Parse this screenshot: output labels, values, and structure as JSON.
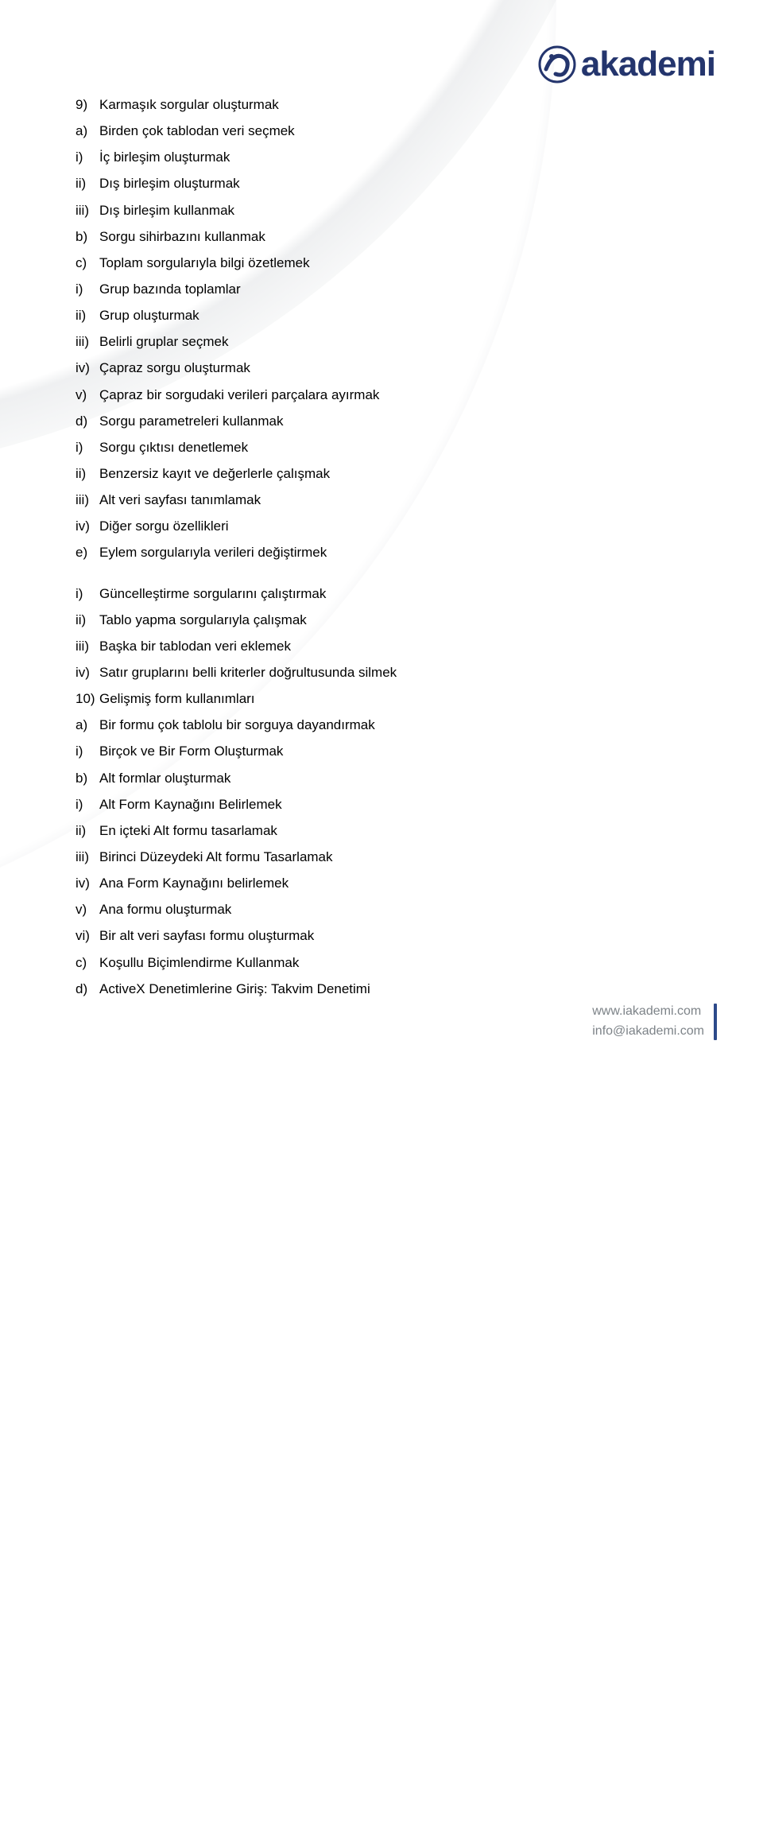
{
  "colors": {
    "text": "#000000",
    "footer_text": "#7d8388",
    "logo_text": "#24356d",
    "logo_swirl": "#24356d",
    "accent_line": "#24356d",
    "footer_bar": "#2d4a8a",
    "background": "#ffffff"
  },
  "logo": {
    "text": "akademi"
  },
  "footer": {
    "line1": "www.iakademi.com",
    "line2": "info@iakademi.com"
  },
  "outline": [
    {
      "lvl": 0,
      "marker": "9)",
      "text": "Karmaşık sorgular oluşturmak"
    },
    {
      "lvl": 1,
      "marker": "a)",
      "text": "Birden çok tablodan veri seçmek"
    },
    {
      "lvl": 2,
      "marker": "i)",
      "text": "İç birleşim oluşturmak"
    },
    {
      "lvl": 2,
      "marker": "ii)",
      "text": "Dış birleşim oluşturmak"
    },
    {
      "lvl": 2,
      "marker": "iii)",
      "text": "Dış birleşim kullanmak"
    },
    {
      "lvl": 1,
      "marker": "b)",
      "text": "Sorgu sihirbazını kullanmak"
    },
    {
      "lvl": 1,
      "marker": "c)",
      "text": "Toplam sorgularıyla bilgi özetlemek"
    },
    {
      "lvl": 2,
      "marker": "i)",
      "text": "Grup bazında toplamlar"
    },
    {
      "lvl": 2,
      "marker": "ii)",
      "text": "Grup oluşturmak"
    },
    {
      "lvl": 2,
      "marker": "iii)",
      "text": "Belirli gruplar seçmek"
    },
    {
      "lvl": 2,
      "marker": "iv)",
      "text": "Çapraz sorgu oluşturmak"
    },
    {
      "lvl": 2,
      "marker": "v)",
      "text": "Çapraz bir sorgudaki verileri parçalara ayırmak"
    },
    {
      "lvl": 1,
      "marker": "d)",
      "text": "Sorgu parametreleri kullanmak"
    },
    {
      "lvl": 2,
      "marker": "i)",
      "text": "Sorgu çıktısı denetlemek"
    },
    {
      "lvl": 2,
      "marker": "ii)",
      "text": "Benzersiz kayıt ve değerlerle çalışmak"
    },
    {
      "lvl": 2,
      "marker": "iii)",
      "text": "Alt veri sayfası tanımlamak"
    },
    {
      "lvl": 2,
      "marker": "iv)",
      "text": "Diğer sorgu özellikleri"
    },
    {
      "lvl": 1,
      "marker": "e)",
      "text": "Eylem sorgularıyla verileri değiştirmek"
    },
    {
      "lvl": 2,
      "gap": true,
      "marker": "i)",
      "text": "Güncelleştirme sorgularını çalıştırmak"
    },
    {
      "lvl": 2,
      "marker": "ii)",
      "text": "Tablo yapma sorgularıyla çalışmak"
    },
    {
      "lvl": 2,
      "marker": "iii)",
      "text": "Başka bir tablodan veri eklemek"
    },
    {
      "lvl": 2,
      "marker": "iv)",
      "text": "Satır gruplarını belli kriterler doğrultusunda silmek"
    },
    {
      "lvl": 0,
      "marker": "10)",
      "text": "Gelişmiş form kullanımları"
    },
    {
      "lvl": 1,
      "marker": "a)",
      "text": "Bir formu çok tablolu bir sorguya dayandırmak"
    },
    {
      "lvl": 2,
      "marker": "i)",
      "text": "Birçok ve Bir Form Oluşturmak"
    },
    {
      "lvl": 1,
      "marker": "b)",
      "text": "Alt formlar oluşturmak"
    },
    {
      "lvl": 2,
      "marker": "i)",
      "text": "Alt Form Kaynağını Belirlemek"
    },
    {
      "lvl": 2,
      "marker": "ii)",
      "text": "En içteki Alt formu tasarlamak"
    },
    {
      "lvl": 2,
      "marker": "iii)",
      "text": "Birinci Düzeydeki Alt formu Tasarlamak"
    },
    {
      "lvl": 2,
      "marker": "iv)",
      "text": "Ana Form Kaynağını belirlemek"
    },
    {
      "lvl": 2,
      "marker": "v)",
      "text": "Ana formu oluşturmak"
    },
    {
      "lvl": 2,
      "marker": "vi)",
      "text": "Bir alt veri sayfası formu oluşturmak"
    },
    {
      "lvl": 1,
      "marker": "c)",
      "text": "Koşullu Biçimlendirme Kullanmak"
    },
    {
      "lvl": 1,
      "marker": "d)",
      "text": "ActiveX Denetimlerine Giriş: Takvim Denetimi"
    }
  ]
}
